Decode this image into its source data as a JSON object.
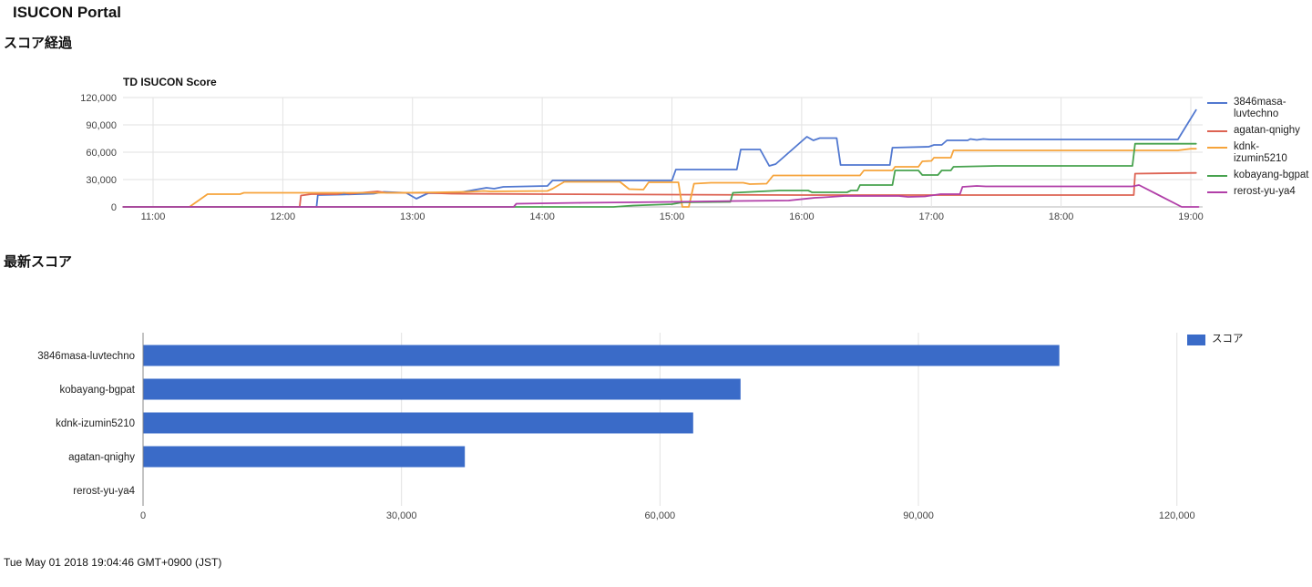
{
  "page": {
    "title": "ISUCON Portal",
    "section_score_timeline": "スコア経過",
    "section_latest_score": "最新スコア",
    "footer_timestamp": "Tue May 01 2018 19:04:46 GMT+0900 (JST)"
  },
  "colors": {
    "line_series": [
      "#5178d0",
      "#dd6353",
      "#f6a43b",
      "#47a24e",
      "#b13fa8"
    ],
    "bar_fill": "#3a6bc8",
    "grid": "#e2e2e2",
    "baseline": "#b5b5b5",
    "axis_text": "#444444",
    "label_text": "#222222"
  },
  "chart_data": [
    {
      "type": "line",
      "title": "TD ISUCON Score",
      "xlabel": "",
      "ylabel": "",
      "x_tick_hours": [
        11,
        12,
        13,
        14,
        15,
        16,
        17,
        18,
        19
      ],
      "x_tick_labels": [
        "11:00",
        "12:00",
        "13:00",
        "14:00",
        "15:00",
        "16:00",
        "17:00",
        "18:00",
        "19:00"
      ],
      "y_ticks": [
        0,
        30000,
        60000,
        90000,
        120000
      ],
      "y_tick_labels": [
        "0",
        "30,000",
        "60,000",
        "90,000",
        "120,000"
      ],
      "xlim_hours": [
        10.77,
        19.09
      ],
      "ylim": [
        0,
        120000
      ],
      "grid": true,
      "legend_position": "right",
      "series": [
        {
          "name": "3846masa-luvtechno",
          "color": "#5178d0",
          "points": [
            [
              10.77,
              0
            ],
            [
              12.26,
              0
            ],
            [
              12.27,
              13000
            ],
            [
              12.45,
              13500
            ],
            [
              12.7,
              14500
            ],
            [
              12.78,
              16500
            ],
            [
              12.95,
              15500
            ],
            [
              13.03,
              9000
            ],
            [
              13.12,
              15000
            ],
            [
              13.35,
              15500
            ],
            [
              13.57,
              21000
            ],
            [
              13.63,
              20000
            ],
            [
              13.7,
              22000
            ],
            [
              14.04,
              23000
            ],
            [
              14.08,
              29000
            ],
            [
              15.0,
              29000
            ],
            [
              15.03,
              41000
            ],
            [
              15.5,
              41000
            ],
            [
              15.53,
              63000
            ],
            [
              15.68,
              63000
            ],
            [
              15.75,
              45000
            ],
            [
              15.8,
              47000
            ],
            [
              16.04,
              77000
            ],
            [
              16.09,
              73000
            ],
            [
              16.14,
              75500
            ],
            [
              16.27,
              75500
            ],
            [
              16.3,
              46000
            ],
            [
              16.68,
              46000
            ],
            [
              16.7,
              65000
            ],
            [
              16.98,
              66000
            ],
            [
              17.02,
              68000
            ],
            [
              17.08,
              68000
            ],
            [
              17.12,
              73000
            ],
            [
              17.28,
              73000
            ],
            [
              17.3,
              74500
            ],
            [
              17.35,
              73500
            ],
            [
              17.4,
              74500
            ],
            [
              17.45,
              74000
            ],
            [
              18.9,
              74000
            ],
            [
              19.04,
              106300
            ]
          ]
        },
        {
          "name": "agatan-qnighy",
          "color": "#dd6353",
          "points": [
            [
              10.77,
              0
            ],
            [
              12.13,
              0
            ],
            [
              12.14,
              12500
            ],
            [
              12.22,
              14000
            ],
            [
              12.42,
              14000
            ],
            [
              12.47,
              15500
            ],
            [
              12.52,
              14500
            ],
            [
              12.73,
              17000
            ],
            [
              12.8,
              15500
            ],
            [
              13.1,
              15500
            ],
            [
              13.3,
              14500
            ],
            [
              14.0,
              14000
            ],
            [
              15.95,
              13000
            ],
            [
              18.56,
              13000
            ],
            [
              18.57,
              36500
            ],
            [
              19.04,
              37300
            ]
          ]
        },
        {
          "name": "kdnk-izumin5210",
          "color": "#f6a43b",
          "points": [
            [
              10.77,
              0
            ],
            [
              11.28,
              0
            ],
            [
              11.42,
              14000
            ],
            [
              11.67,
              14000
            ],
            [
              11.7,
              15500
            ],
            [
              12.9,
              15500
            ],
            [
              13.2,
              16000
            ],
            [
              13.42,
              16500
            ],
            [
              13.55,
              17500
            ],
            [
              13.6,
              17000
            ],
            [
              14.04,
              17500
            ],
            [
              14.08,
              20000
            ],
            [
              14.17,
              27500
            ],
            [
              14.6,
              27500
            ],
            [
              14.67,
              19500
            ],
            [
              14.78,
              19000
            ],
            [
              14.82,
              27000
            ],
            [
              15.05,
              27000
            ],
            [
              15.08,
              0
            ],
            [
              15.13,
              0
            ],
            [
              15.17,
              25500
            ],
            [
              15.3,
              26500
            ],
            [
              15.55,
              26500
            ],
            [
              15.6,
              25000
            ],
            [
              15.73,
              25500
            ],
            [
              15.78,
              34500
            ],
            [
              16.45,
              34500
            ],
            [
              16.48,
              40000
            ],
            [
              16.7,
              40000
            ],
            [
              16.72,
              44000
            ],
            [
              16.9,
              44000
            ],
            [
              16.93,
              50000
            ],
            [
              17.0,
              50500
            ],
            [
              17.02,
              54000
            ],
            [
              17.15,
              54000
            ],
            [
              17.17,
              62000
            ],
            [
              18.9,
              62000
            ],
            [
              19.0,
              63800
            ],
            [
              19.04,
              63800
            ]
          ]
        },
        {
          "name": "kobayang-bgpat",
          "color": "#47a24e",
          "points": [
            [
              10.77,
              0
            ],
            [
              14.55,
              0
            ],
            [
              14.7,
              1500
            ],
            [
              15.0,
              3000
            ],
            [
              15.08,
              5000
            ],
            [
              15.45,
              5500
            ],
            [
              15.47,
              15500
            ],
            [
              15.83,
              18000
            ],
            [
              16.05,
              18000
            ],
            [
              16.08,
              16000
            ],
            [
              16.35,
              16000
            ],
            [
              16.38,
              18000
            ],
            [
              16.43,
              18000
            ],
            [
              16.45,
              24000
            ],
            [
              16.7,
              24000
            ],
            [
              16.72,
              40000
            ],
            [
              16.9,
              40000
            ],
            [
              16.93,
              35000
            ],
            [
              17.05,
              35000
            ],
            [
              17.08,
              40000
            ],
            [
              17.15,
              40000
            ],
            [
              17.17,
              44000
            ],
            [
              17.5,
              45000
            ],
            [
              18.55,
              45000
            ],
            [
              18.57,
              69300
            ],
            [
              19.04,
              69300
            ]
          ]
        },
        {
          "name": "rerost-yu-ya4",
          "color": "#b13fa8",
          "points": [
            [
              10.77,
              0
            ],
            [
              13.78,
              0
            ],
            [
              13.8,
              3500
            ],
            [
              14.3,
              4500
            ],
            [
              15.0,
              5500
            ],
            [
              15.5,
              6500
            ],
            [
              15.9,
              7000
            ],
            [
              16.1,
              10000
            ],
            [
              16.17,
              10500
            ],
            [
              16.33,
              12000
            ],
            [
              16.75,
              12000
            ],
            [
              16.82,
              11000
            ],
            [
              16.95,
              11500
            ],
            [
              17.07,
              14000
            ],
            [
              17.22,
              14000
            ],
            [
              17.24,
              22000
            ],
            [
              17.35,
              23000
            ],
            [
              17.42,
              22500
            ],
            [
              18.48,
              22500
            ],
            [
              18.55,
              22500
            ],
            [
              18.6,
              24000
            ],
            [
              18.93,
              0
            ],
            [
              19.06,
              0
            ]
          ]
        }
      ]
    },
    {
      "type": "bar",
      "orientation": "horizontal",
      "title": "",
      "series_name": "スコア",
      "categories": [
        "3846masa-luvtechno",
        "kobayang-bgpat",
        "kdnk-izumin5210",
        "agatan-qnighy",
        "rerost-yu-ya4"
      ],
      "values": [
        106300,
        69300,
        63800,
        37300,
        0
      ],
      "x_ticks": [
        0,
        30000,
        60000,
        90000,
        120000
      ],
      "x_tick_labels": [
        "0",
        "30,000",
        "60,000",
        "90,000",
        "120,000"
      ],
      "xlim": [
        0,
        125000
      ],
      "grid": true,
      "legend_position": "top-right",
      "bar_color": "#3a6bc8"
    }
  ]
}
